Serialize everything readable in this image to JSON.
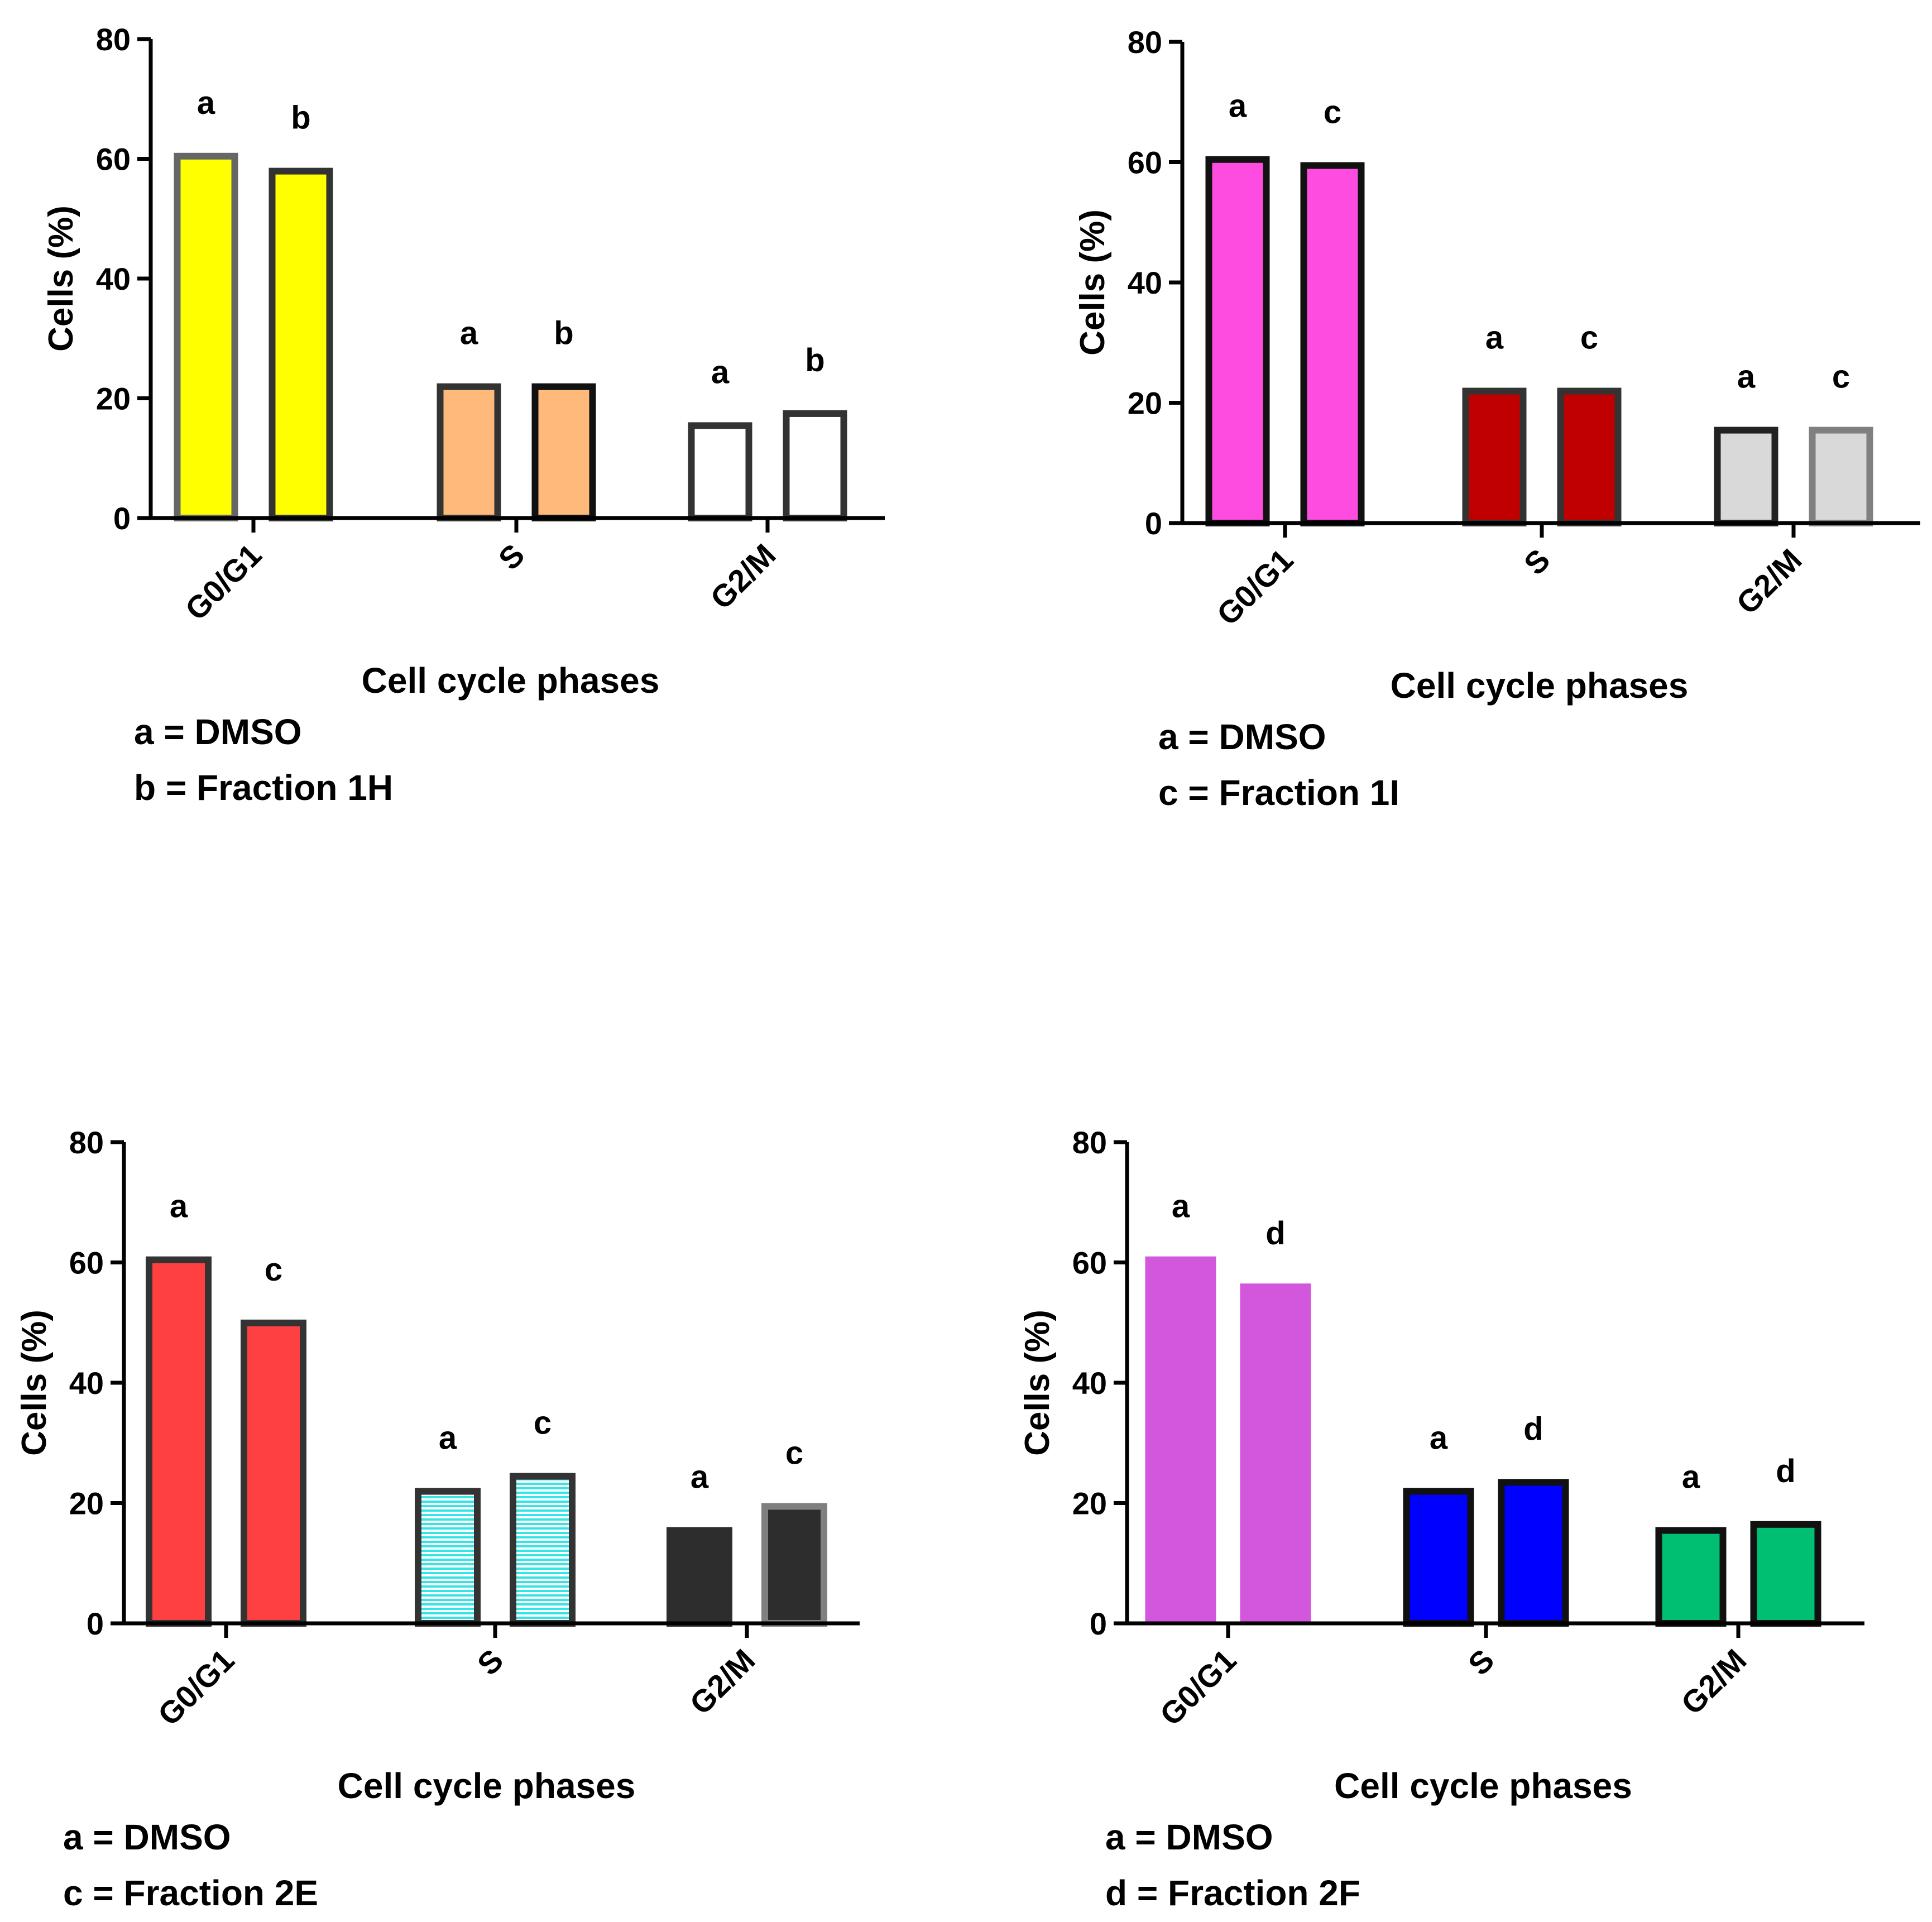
{
  "chart_data": [
    {
      "type": "bar",
      "title": "",
      "xlabel": "Cell cycle phases",
      "ylabel": "Cells (%)",
      "ylim": [
        0,
        80
      ],
      "yticks": [
        "0",
        "20",
        "40",
        "60",
        "80"
      ],
      "categories": [
        "G0/G1",
        "S",
        "G2/M"
      ],
      "series": [
        {
          "name": "a",
          "values": [
            61,
            22.5,
            16
          ],
          "labels": [
            "a",
            "a",
            "a"
          ],
          "fills": [
            "#ffff00",
            "#ffb97a",
            "#ffffff"
          ],
          "strokes": [
            "#666666",
            "#333333",
            "#333333"
          ]
        },
        {
          "name": "b",
          "values": [
            58.5,
            22.5,
            18
          ],
          "labels": [
            "b",
            "b",
            "b"
          ],
          "fills": [
            "#ffff00",
            "#ffb97a",
            "#ffffff"
          ],
          "strokes": [
            "#333333",
            "#111111",
            "#333333"
          ]
        }
      ],
      "legend": [
        "a = DMSO",
        "b = Fraction 1H"
      ]
    },
    {
      "type": "bar",
      "title": "",
      "xlabel": "Cell cycle phases",
      "ylabel": "Cells (%)",
      "ylim": [
        0,
        80
      ],
      "yticks": [
        "0",
        "20",
        "40",
        "60",
        "80"
      ],
      "categories": [
        "G0/G1",
        "S",
        "G2/M"
      ],
      "series": [
        {
          "name": "a",
          "values": [
            61,
            22.5,
            16
          ],
          "labels": [
            "a",
            "a",
            "a"
          ],
          "fills": [
            "#ff4ce0",
            "#c00000",
            "#d9d9d9"
          ],
          "strokes": [
            "#111111",
            "#333333",
            "#222222"
          ]
        },
        {
          "name": "c",
          "values": [
            60,
            22.5,
            16
          ],
          "labels": [
            "c",
            "c",
            "c"
          ],
          "fills": [
            "#ff4ce0",
            "#c00000",
            "#d9d9d9"
          ],
          "strokes": [
            "#111111",
            "#333333",
            "#808080"
          ]
        }
      ],
      "legend": [
        "a = DMSO",
        "c = Fraction 1I"
      ]
    },
    {
      "type": "bar",
      "title": "",
      "xlabel": "Cell cycle phases",
      "ylabel": "Cells (%)",
      "ylim": [
        0,
        80
      ],
      "yticks": [
        "0",
        "20",
        "40",
        "60",
        "80"
      ],
      "categories": [
        "G0/G1",
        "S",
        "G2/M"
      ],
      "series": [
        {
          "name": "a",
          "values": [
            61,
            22.5,
            16
          ],
          "labels": [
            "a",
            "a",
            "a"
          ],
          "fills": [
            "#ff4040",
            "hatch-cyan",
            "#2d2d2d"
          ],
          "strokes": [
            "#333333",
            "#333333",
            "#2d2d2d"
          ]
        },
        {
          "name": "c",
          "values": [
            50.5,
            25,
            20
          ],
          "labels": [
            "c",
            "c",
            "c"
          ],
          "fills": [
            "#ff4040",
            "hatch-cyan",
            "#2d2d2d"
          ],
          "strokes": [
            "#333333",
            "#333333",
            "#808080"
          ]
        }
      ],
      "legend": [
        "a = DMSO",
        "c = Fraction 2E"
      ]
    },
    {
      "type": "bar",
      "title": "",
      "xlabel": "Cell cycle phases",
      "ylabel": "Cells (%)",
      "ylim": [
        0,
        80
      ],
      "yticks": [
        "0",
        "20",
        "40",
        "60",
        "80"
      ],
      "categories": [
        "G0/G1",
        "S",
        "G2/M"
      ],
      "series": [
        {
          "name": "a",
          "values": [
            61,
            22.5,
            16
          ],
          "labels": [
            "a",
            "a",
            "a"
          ],
          "fills": [
            "#d357dc",
            "#0000ff",
            "#00bf72"
          ],
          "strokes": [
            "none",
            "#111111",
            "#111111"
          ]
        },
        {
          "name": "d",
          "values": [
            56.5,
            24,
            17
          ],
          "labels": [
            "d",
            "d",
            "d"
          ],
          "fills": [
            "#d357dc",
            "#0000ff",
            "#00bf72"
          ],
          "strokes": [
            "none",
            "#111111",
            "#111111"
          ]
        }
      ],
      "legend": [
        "a = DMSO",
        "d = Fraction 2F"
      ]
    }
  ]
}
